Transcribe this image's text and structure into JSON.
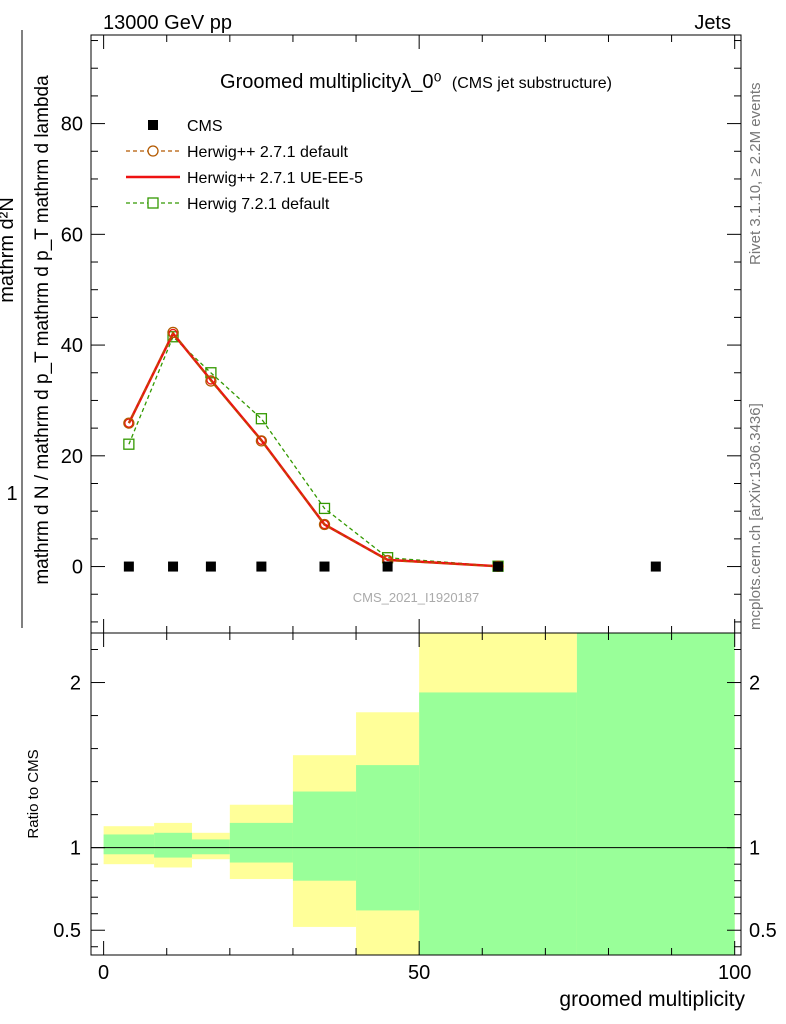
{
  "header": {
    "energy_label": "13000 GeV pp",
    "process_label": "Jets"
  },
  "side_labels": {
    "rivet": "Rivet 3.1.10, ≥ 2.2M events",
    "mcplots": "mcplots.cern.ch [arXiv:1306.3436]"
  },
  "watermark": "CMS_2021_I1920187",
  "colors": {
    "cms": "#000000",
    "herwig_default": "#b35900",
    "herwig_ueee5": "#ee1111",
    "herwig7": "#339900",
    "band_inner": "#99ff99",
    "band_outer": "#ffff99"
  },
  "chart_data": [
    {
      "type": "line",
      "title": "Groomed multiplicityλ_0⁰",
      "subtitle": "(CMS jet substructure)",
      "ylabel_top": "1",
      "ylabel_bottom": "mathrm d N / mathrm d p_T mathrm d p_T mathrm d lambda",
      "ylabel_num": "mathrm d²N",
      "xlim": [
        -2,
        101
      ],
      "ylim": [
        -12,
        96
      ],
      "yticks": [
        0,
        20,
        40,
        60,
        80
      ],
      "grid": false,
      "legend_position": "top-left",
      "series": [
        {
          "name": "CMS",
          "style": "markers",
          "x": [
            4,
            11,
            17,
            25,
            35,
            45,
            62.5,
            87.5
          ],
          "y": [
            0,
            0,
            0,
            0,
            0,
            0,
            0,
            0
          ]
        },
        {
          "name": "Herwig++ 2.7.1 default",
          "style": "dashed-circle",
          "x": [
            4,
            11,
            17,
            25,
            35,
            45,
            62.5
          ],
          "y": [
            25.9,
            42.3,
            33.5,
            22.7,
            7.6,
            1.1,
            0.05
          ]
        },
        {
          "name": "Herwig++ 2.7.1 UE-EE-5",
          "style": "solid",
          "x": [
            4,
            11,
            17,
            25,
            35,
            45,
            62.5
          ],
          "y": [
            25.9,
            42.1,
            33.7,
            22.8,
            7.6,
            1.2,
            0.05
          ]
        },
        {
          "name": "Herwig 7.2.1 default",
          "style": "dashed-square",
          "x": [
            4,
            11,
            17,
            25,
            35,
            45,
            62.5
          ],
          "y": [
            22.1,
            41.5,
            35.0,
            26.7,
            10.5,
            1.6,
            0.06
          ]
        }
      ]
    },
    {
      "type": "area",
      "ylabel": "Ratio to CMS",
      "xlabel": "groomed multiplicity",
      "xlim": [
        -2,
        101
      ],
      "xticks": [
        0,
        50,
        100
      ],
      "ylim": [
        0.35,
        2.3
      ],
      "yticks": [
        0.5,
        1,
        2
      ],
      "reference_line": 1,
      "bands": [
        {
          "x0": 0,
          "x1": 8,
          "outer": [
            0.9,
            1.13
          ],
          "inner": [
            0.96,
            1.08
          ]
        },
        {
          "x0": 8,
          "x1": 14,
          "outer": [
            0.88,
            1.15
          ],
          "inner": [
            0.94,
            1.09
          ]
        },
        {
          "x0": 14,
          "x1": 20,
          "outer": [
            0.93,
            1.09
          ],
          "inner": [
            0.96,
            1.05
          ]
        },
        {
          "x0": 20,
          "x1": 30,
          "outer": [
            0.81,
            1.26
          ],
          "inner": [
            0.91,
            1.15
          ]
        },
        {
          "x0": 30,
          "x1": 40,
          "outer": [
            0.52,
            1.56
          ],
          "inner": [
            0.8,
            1.34
          ]
        },
        {
          "x0": 40,
          "x1": 50,
          "outer": [
            0.35,
            1.82
          ],
          "inner": [
            0.62,
            1.5
          ]
        },
        {
          "x0": 50,
          "x1": 75,
          "outer": [
            0.35,
            2.3
          ],
          "inner": [
            0.35,
            1.94
          ]
        },
        {
          "x0": 75,
          "x1": 100,
          "outer": [
            0.35,
            2.3
          ],
          "inner": [
            0.35,
            2.3
          ]
        }
      ]
    }
  ]
}
